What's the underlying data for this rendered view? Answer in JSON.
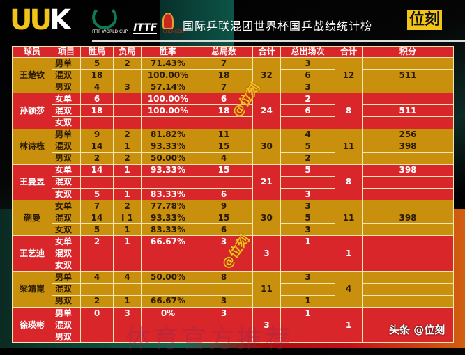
{
  "header": {
    "logo": "UUK",
    "logos": [
      "ITTF WORLD CUP",
      "ITTF",
      "CHENGDU"
    ],
    "title": "国际乒联混团世界杯国乒战绩统计榜",
    "brand": "位刻"
  },
  "columns": [
    "球员",
    "项目",
    "胜局",
    "负局",
    "胜率",
    "总局数",
    "合计",
    "总出场次",
    "合计",
    "积分"
  ],
  "players": [
    {
      "name": "王楚钦",
      "color": "gold",
      "games_total": "32",
      "matches_total": "12",
      "rows": [
        {
          "event": "男单",
          "won": "5",
          "lost": "2",
          "rate": "71.43%",
          "games": "7",
          "matches": "3",
          "points": ""
        },
        {
          "event": "混双",
          "won": "18",
          "lost": "",
          "rate": "100.00%",
          "games": "18",
          "matches": "6",
          "points": "511"
        },
        {
          "event": "男双",
          "won": "4",
          "lost": "3",
          "rate": "57.14%",
          "games": "7",
          "matches": "3",
          "points": ""
        }
      ]
    },
    {
      "name": "孙颖莎",
      "color": "red",
      "games_total": "24",
      "matches_total": "8",
      "rows": [
        {
          "event": "女单",
          "won": "6",
          "lost": "",
          "rate": "100.00%",
          "games": "6",
          "matches": "2",
          "points": ""
        },
        {
          "event": "混双",
          "won": "18",
          "lost": "",
          "rate": "100.00%",
          "games": "18",
          "matches": "6",
          "points": "511"
        },
        {
          "event": "女双",
          "won": "",
          "lost": "",
          "rate": "",
          "games": "",
          "matches": "",
          "points": ""
        }
      ]
    },
    {
      "name": "林诗栋",
      "color": "gold",
      "games_total": "30",
      "matches_total": "11",
      "rows": [
        {
          "event": "男单",
          "won": "9",
          "lost": "2",
          "rate": "81.82%",
          "games": "11",
          "matches": "4",
          "points": "256"
        },
        {
          "event": "混双",
          "won": "14",
          "lost": "1",
          "rate": "93.33%",
          "games": "15",
          "matches": "5",
          "points": "398"
        },
        {
          "event": "男双",
          "won": "2",
          "lost": "2",
          "rate": "50.00%",
          "games": "4",
          "matches": "2",
          "points": ""
        }
      ]
    },
    {
      "name": "王曼昱",
      "color": "red",
      "games_total": "21",
      "matches_total": "8",
      "rows": [
        {
          "event": "女单",
          "won": "14",
          "lost": "1",
          "rate": "93.33%",
          "games": "15",
          "matches": "5",
          "points": "398"
        },
        {
          "event": "混双",
          "won": "",
          "lost": "",
          "rate": "",
          "games": "",
          "matches": "",
          "points": ""
        },
        {
          "event": "女双",
          "won": "5",
          "lost": "1",
          "rate": "83.33%",
          "games": "6",
          "matches": "3",
          "points": ""
        }
      ]
    },
    {
      "name": "蒯曼",
      "color": "gold",
      "games_total": "30",
      "matches_total": "11",
      "rows": [
        {
          "event": "女单",
          "won": "7",
          "lost": "2",
          "rate": "77.78%",
          "games": "9",
          "matches": "3",
          "points": ""
        },
        {
          "event": "混双",
          "won": "14",
          "lost": "I 1",
          "rate": "93.33%",
          "games": "15",
          "matches": "5",
          "points": "398"
        },
        {
          "event": "女双",
          "won": "5",
          "lost": "1",
          "rate": "83.33%",
          "games": "6",
          "matches": "3",
          "points": ""
        }
      ]
    },
    {
      "name": "王艺迪",
      "color": "red",
      "games_total": "3",
      "matches_total": "1",
      "rows": [
        {
          "event": "女单",
          "won": "2",
          "lost": "1",
          "rate": "66.67%",
          "games": "3",
          "matches": "1",
          "points": ""
        },
        {
          "event": "混双",
          "won": "",
          "lost": "",
          "rate": "",
          "games": "",
          "matches": "",
          "points": ""
        },
        {
          "event": "女双",
          "won": "",
          "lost": "",
          "rate": "",
          "games": "",
          "matches": "",
          "points": ""
        }
      ]
    },
    {
      "name": "梁靖崑",
      "color": "gold",
      "games_total": "11",
      "matches_total": "4",
      "rows": [
        {
          "event": "男单",
          "won": "4",
          "lost": "4",
          "rate": "50.00%",
          "games": "8",
          "matches": "3",
          "points": ""
        },
        {
          "event": "混双",
          "won": "",
          "lost": "",
          "rate": "",
          "games": "",
          "matches": "",
          "points": ""
        },
        {
          "event": "男双",
          "won": "2",
          "lost": "1",
          "rate": "66.67%",
          "games": "3",
          "matches": "1",
          "points": ""
        }
      ]
    },
    {
      "name": "徐瑛彬",
      "color": "red",
      "games_total": "3",
      "matches_total": "1",
      "rows": [
        {
          "event": "男单",
          "won": "0",
          "lost": "3",
          "rate": "0%",
          "games": "3",
          "matches": "1",
          "points": ""
        },
        {
          "event": "混双",
          "won": "",
          "lost": "",
          "rate": "",
          "games": "",
          "matches": "",
          "points": ""
        },
        {
          "event": "男双",
          "won": "",
          "lost": "",
          "rate": "",
          "games": "",
          "matches": "",
          "points": ""
        }
      ]
    }
  ],
  "watermarks": {
    "tag1": "@位刻",
    "tag2": "@位刻",
    "faint": "体育官方推荐",
    "corner": "头条 @位刻"
  },
  "colors": {
    "gold": "#c8900c",
    "red": "#d8262a",
    "brand": "#f2c418"
  }
}
